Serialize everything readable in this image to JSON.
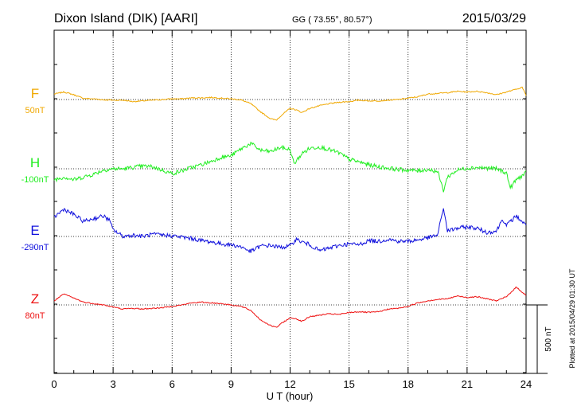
{
  "header": {
    "station": "Dixon Island (DIK)  [AARI]",
    "coords": "GG ( 73.55°,  80.57°)",
    "date": "2015/03/29"
  },
  "side_note": "Plotted at 2015/04/29 01:30 UT",
  "scale_label": "500 nT",
  "chart_data": {
    "type": "line",
    "xlabel": "U T (hour)",
    "xlim": [
      0,
      24
    ],
    "x_ticks": [
      "0",
      "3",
      "6",
      "9",
      "12",
      "15",
      "18",
      "21",
      "24"
    ],
    "y_scale_nT": 500,
    "grid": true,
    "series": [
      {
        "name": "F",
        "baseline_label": "50nT",
        "color": "#f0a800",
        "points": [
          [
            0,
            40
          ],
          [
            0.5,
            55
          ],
          [
            1,
            35
          ],
          [
            1.5,
            8
          ],
          [
            2,
            5
          ],
          [
            2.5,
            -2
          ],
          [
            3,
            -5
          ],
          [
            3.5,
            -5
          ],
          [
            4,
            -15
          ],
          [
            4.5,
            -10
          ],
          [
            5,
            -5
          ],
          [
            5.5,
            0
          ],
          [
            6,
            5
          ],
          [
            6.5,
            5
          ],
          [
            7,
            12
          ],
          [
            7.5,
            12
          ],
          [
            8,
            15
          ],
          [
            8.5,
            10
          ],
          [
            9,
            5
          ],
          [
            9.5,
            -3
          ],
          [
            10,
            -30
          ],
          [
            10.5,
            -90
          ],
          [
            11,
            -140
          ],
          [
            11.3,
            -150
          ],
          [
            11.6,
            -110
          ],
          [
            12,
            -65
          ],
          [
            12.3,
            -75
          ],
          [
            12.6,
            -95
          ],
          [
            13,
            -65
          ],
          [
            13.5,
            -45
          ],
          [
            14,
            -30
          ],
          [
            14.5,
            -20
          ],
          [
            15,
            -15
          ],
          [
            15.5,
            -5
          ],
          [
            16,
            -10
          ],
          [
            16.5,
            -10
          ],
          [
            17,
            -5
          ],
          [
            17.5,
            0
          ],
          [
            18,
            10
          ],
          [
            18.5,
            20
          ],
          [
            19,
            40
          ],
          [
            19.5,
            45
          ],
          [
            20,
            50
          ],
          [
            20.5,
            60
          ],
          [
            21,
            55
          ],
          [
            21.5,
            60
          ],
          [
            22,
            50
          ],
          [
            22.5,
            35
          ],
          [
            23,
            55
          ],
          [
            23.5,
            75
          ],
          [
            23.8,
            90
          ],
          [
            24,
            30
          ]
        ]
      },
      {
        "name": "H",
        "baseline_label": "-100nT",
        "color": "#22ee22",
        "points": [
          [
            0,
            -80
          ],
          [
            0.5,
            -60
          ],
          [
            1,
            -80
          ],
          [
            1.5,
            -60
          ],
          [
            2,
            -40
          ],
          [
            2.5,
            -10
          ],
          [
            3,
            0
          ],
          [
            3.5,
            0
          ],
          [
            4,
            10
          ],
          [
            4.5,
            20
          ],
          [
            5,
            15
          ],
          [
            5.5,
            -10
          ],
          [
            6,
            -35
          ],
          [
            6.5,
            -15
          ],
          [
            7,
            10
          ],
          [
            7.5,
            30
          ],
          [
            8,
            55
          ],
          [
            8.5,
            85
          ],
          [
            9,
            95
          ],
          [
            9.5,
            145
          ],
          [
            10,
            185
          ],
          [
            10.5,
            135
          ],
          [
            11,
            125
          ],
          [
            11.5,
            155
          ],
          [
            12,
            140
          ],
          [
            12.2,
            35
          ],
          [
            12.6,
            110
          ],
          [
            13,
            150
          ],
          [
            13.5,
            160
          ],
          [
            14,
            140
          ],
          [
            14.5,
            115
          ],
          [
            15,
            70
          ],
          [
            15.5,
            50
          ],
          [
            16,
            30
          ],
          [
            16.5,
            15
          ],
          [
            17,
            5
          ],
          [
            17.5,
            -5
          ],
          [
            18,
            -10
          ],
          [
            18.5,
            -15
          ],
          [
            19,
            -5
          ],
          [
            19.5,
            -20
          ],
          [
            19.8,
            -160
          ],
          [
            20,
            -60
          ],
          [
            20.5,
            -10
          ],
          [
            21,
            5
          ],
          [
            21.5,
            10
          ],
          [
            22,
            5
          ],
          [
            22.5,
            0
          ],
          [
            23,
            -30
          ],
          [
            23.2,
            -140
          ],
          [
            23.5,
            -80
          ],
          [
            24,
            -30
          ]
        ]
      },
      {
        "name": "E",
        "baseline_label": "-290nT",
        "color": "#1111dd",
        "points": [
          [
            0,
            140
          ],
          [
            0.5,
            200
          ],
          [
            1,
            160
          ],
          [
            1.5,
            110
          ],
          [
            2,
            130
          ],
          [
            2.5,
            150
          ],
          [
            2.8,
            120
          ],
          [
            3,
            50
          ],
          [
            3.5,
            0
          ],
          [
            4,
            10
          ],
          [
            4.5,
            0
          ],
          [
            5,
            15
          ],
          [
            5.5,
            10
          ],
          [
            6,
            5
          ],
          [
            6.5,
            -5
          ],
          [
            7,
            -15
          ],
          [
            7.5,
            -30
          ],
          [
            8,
            -40
          ],
          [
            8.5,
            -55
          ],
          [
            9,
            -60
          ],
          [
            9.5,
            -75
          ],
          [
            10,
            -110
          ],
          [
            10.5,
            -70
          ],
          [
            11,
            -65
          ],
          [
            11.5,
            -80
          ],
          [
            12,
            -70
          ],
          [
            12.3,
            -20
          ],
          [
            12.6,
            -40
          ],
          [
            13,
            -60
          ],
          [
            13.5,
            -105
          ],
          [
            14,
            -85
          ],
          [
            14.5,
            -65
          ],
          [
            15,
            -55
          ],
          [
            15.5,
            -60
          ],
          [
            16,
            -30
          ],
          [
            16.5,
            -35
          ],
          [
            17,
            -20
          ],
          [
            17.5,
            -35
          ],
          [
            18,
            -35
          ],
          [
            18.5,
            -25
          ],
          [
            19,
            -10
          ],
          [
            19.5,
            10
          ],
          [
            19.8,
            210
          ],
          [
            20,
            40
          ],
          [
            20.5,
            60
          ],
          [
            21,
            70
          ],
          [
            21.5,
            60
          ],
          [
            22,
            30
          ],
          [
            22.5,
            40
          ],
          [
            22.8,
            130
          ],
          [
            23,
            80
          ],
          [
            23.5,
            150
          ],
          [
            24,
            80
          ]
        ]
      },
      {
        "name": "Z",
        "baseline_label": "80nT",
        "color": "#ee1111",
        "points": [
          [
            0,
            30
          ],
          [
            0.5,
            80
          ],
          [
            1,
            50
          ],
          [
            1.5,
            20
          ],
          [
            2,
            10
          ],
          [
            2.5,
            0
          ],
          [
            3,
            -15
          ],
          [
            3.5,
            -30
          ],
          [
            4,
            -25
          ],
          [
            4.5,
            -30
          ],
          [
            5,
            -25
          ],
          [
            5.5,
            -20
          ],
          [
            6,
            -10
          ],
          [
            6.5,
            0
          ],
          [
            7,
            15
          ],
          [
            7.5,
            20
          ],
          [
            8,
            15
          ],
          [
            8.5,
            10
          ],
          [
            9,
            0
          ],
          [
            9.5,
            -10
          ],
          [
            10,
            -40
          ],
          [
            10.5,
            -110
          ],
          [
            11,
            -150
          ],
          [
            11.3,
            -165
          ],
          [
            11.6,
            -130
          ],
          [
            12,
            -95
          ],
          [
            12.3,
            -100
          ],
          [
            12.6,
            -120
          ],
          [
            13,
            -85
          ],
          [
            13.5,
            -75
          ],
          [
            14,
            -65
          ],
          [
            14.5,
            -70
          ],
          [
            15,
            -55
          ],
          [
            15.5,
            -50
          ],
          [
            16,
            -55
          ],
          [
            16.5,
            -50
          ],
          [
            17,
            -30
          ],
          [
            17.5,
            -25
          ],
          [
            18,
            -10
          ],
          [
            18.5,
            15
          ],
          [
            19,
            30
          ],
          [
            19.5,
            40
          ],
          [
            20,
            45
          ],
          [
            20.5,
            65
          ],
          [
            21,
            55
          ],
          [
            21.5,
            60
          ],
          [
            22,
            45
          ],
          [
            22.5,
            30
          ],
          [
            23,
            60
          ],
          [
            23.5,
            130
          ],
          [
            24,
            70
          ]
        ]
      }
    ]
  }
}
